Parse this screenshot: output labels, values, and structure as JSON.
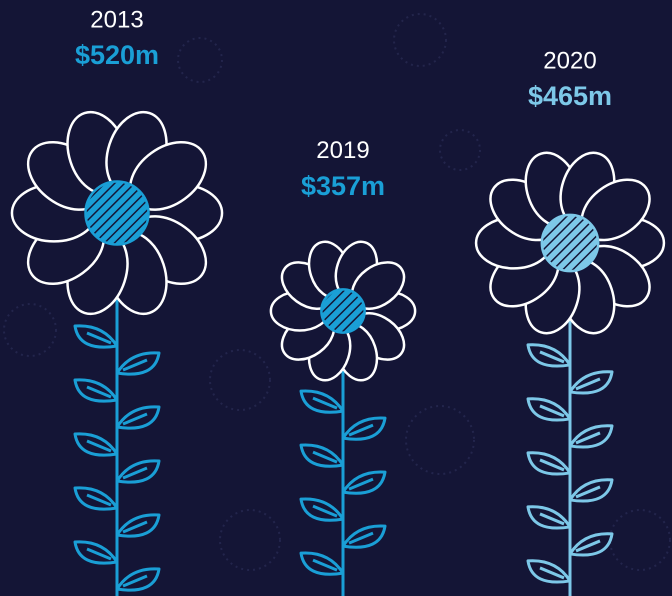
{
  "chart_data": {
    "type": "pictograph",
    "categories": [
      "2013",
      "2019",
      "2020"
    ],
    "values": [
      520,
      357,
      465
    ],
    "value_labels": [
      "$520m",
      "$357m",
      "$465m"
    ],
    "colors": [
      "#1a9fd6",
      "#1a9fd6",
      "#7dc8e8"
    ]
  }
}
